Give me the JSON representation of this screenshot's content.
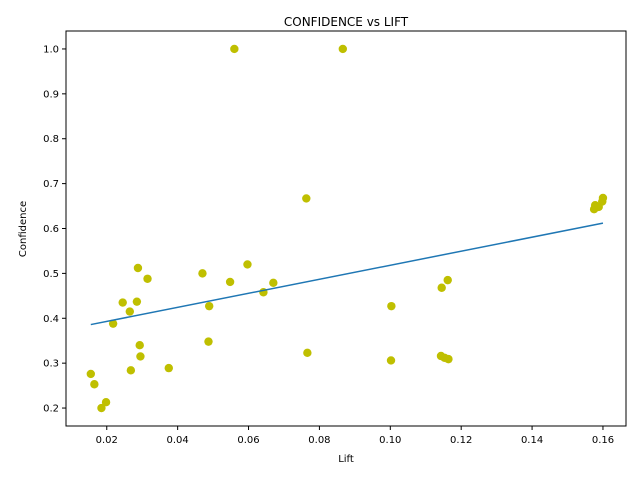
{
  "chart_data": {
    "type": "scatter",
    "title": "CONFIDENCE vs LIFT",
    "xlabel": "Lift",
    "ylabel": "Confidence",
    "xlim": [
      0.0085,
      0.1665
    ],
    "ylim": [
      0.16,
      1.04
    ],
    "xticks": [
      "0.02",
      "0.04",
      "0.06",
      "0.08",
      "0.10",
      "0.12",
      "0.14",
      "0.16"
    ],
    "xtick_values": [
      0.02,
      0.04,
      0.06,
      0.08,
      0.1,
      0.12,
      0.14,
      0.16
    ],
    "yticks": [
      "0.2",
      "0.3",
      "0.4",
      "0.5",
      "0.6",
      "0.7",
      "0.8",
      "0.9",
      "1.0"
    ],
    "ytick_values": [
      0.2,
      0.3,
      0.4,
      0.5,
      0.6,
      0.7,
      0.8,
      0.9,
      1.0
    ],
    "grid": false,
    "points": {
      "color": "#bfbf00",
      "x": [
        0.0155,
        0.0165,
        0.0185,
        0.0198,
        0.0218,
        0.0245,
        0.0265,
        0.0268,
        0.0285,
        0.0288,
        0.0293,
        0.0295,
        0.0315,
        0.0375,
        0.047,
        0.0487,
        0.0489,
        0.0548,
        0.056,
        0.0597,
        0.0642,
        0.067,
        0.0763,
        0.0766,
        0.0866,
        0.1002,
        0.1003,
        0.1143,
        0.1145,
        0.1153,
        0.1162,
        0.1164,
        0.1575,
        0.1578,
        0.1588,
        0.1598,
        0.16
      ],
      "y": [
        0.276,
        0.253,
        0.2,
        0.213,
        0.388,
        0.435,
        0.415,
        0.284,
        0.437,
        0.512,
        0.34,
        0.315,
        0.488,
        0.289,
        0.5,
        0.348,
        0.427,
        0.481,
        1.0,
        0.52,
        0.458,
        0.479,
        0.667,
        0.323,
        1.0,
        0.306,
        0.427,
        0.316,
        0.468,
        0.312,
        0.485,
        0.309,
        0.643,
        0.652,
        0.648,
        0.66,
        0.668
      ]
    },
    "trendline": {
      "color": "#1f77b4",
      "x": [
        0.0155,
        0.16
      ],
      "y": [
        0.386,
        0.612
      ]
    }
  }
}
